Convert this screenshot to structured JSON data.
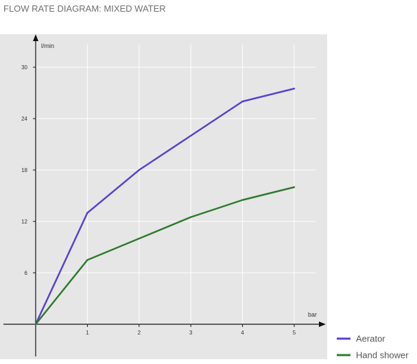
{
  "page": {
    "title": "FLOW RATE DIAGRAM: MIXED WATER"
  },
  "chart_data": {
    "type": "line",
    "title": "FLOW RATE DIAGRAM: MIXED WATER",
    "xlabel": "bar",
    "ylabel": "l/min",
    "xlim": [
      0,
      5
    ],
    "ylim": [
      0,
      30
    ],
    "x_ticks": [
      1,
      2,
      3,
      4,
      5
    ],
    "y_ticks": [
      6,
      12,
      18,
      24,
      30
    ],
    "grid": true,
    "legend_position": "bottom-right",
    "background_color": "#e6e6e6",
    "grid_color": "#ffffff",
    "series": [
      {
        "name": "Aerator",
        "color": "#5a3fd1",
        "x": [
          0,
          1,
          2,
          3,
          4,
          5
        ],
        "y": [
          0,
          13,
          18,
          22,
          26,
          27.5
        ]
      },
      {
        "name": "Hand shower",
        "color": "#2d7a2d",
        "x": [
          0,
          1,
          2,
          3,
          4,
          5
        ],
        "y": [
          0,
          7.5,
          10,
          12.5,
          14.5,
          16
        ]
      }
    ]
  }
}
